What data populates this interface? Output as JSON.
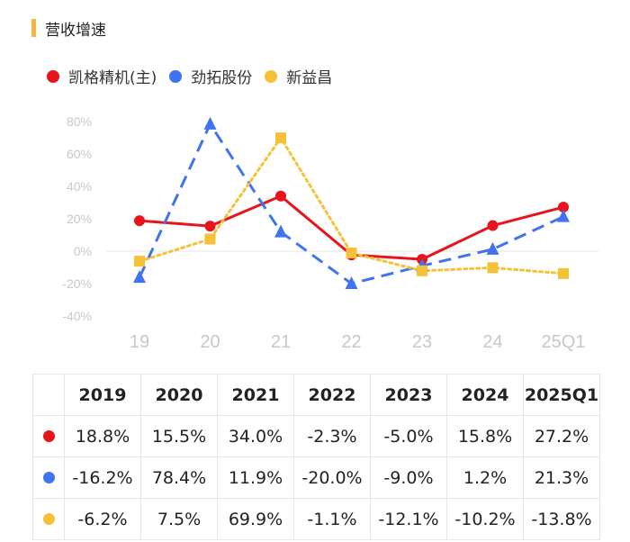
{
  "title": "营收增速",
  "colors": {
    "accent": "#f5b83b"
  },
  "chart_data": {
    "type": "line",
    "categories": [
      "19",
      "20",
      "21",
      "22",
      "23",
      "24",
      "25Q1"
    ],
    "ylim": [
      -40,
      80
    ],
    "yticks": [
      "80%",
      "60%",
      "40%",
      "20%",
      "0%",
      "-20%",
      "-40%"
    ],
    "ytick_values": [
      80,
      60,
      40,
      20,
      0,
      -20,
      -40
    ],
    "series": [
      {
        "name": "凯格精机(主)",
        "color": "#e8141c",
        "marker": "circle",
        "line": "solid",
        "values": [
          18.8,
          15.5,
          34.0,
          -2.3,
          -5.0,
          15.8,
          27.2
        ]
      },
      {
        "name": "劲拓股份",
        "color": "#3f73f2",
        "marker": "triangle",
        "line": "dashed",
        "values": [
          -16.2,
          78.4,
          11.9,
          -20.0,
          -9.0,
          1.2,
          21.3
        ]
      },
      {
        "name": "新益昌",
        "color": "#f7c137",
        "marker": "square",
        "line": "dotted",
        "values": [
          -6.2,
          7.5,
          69.9,
          -1.1,
          -12.1,
          -10.2,
          -13.8
        ]
      }
    ]
  },
  "table": {
    "headers": [
      "",
      "2019",
      "2020",
      "2021",
      "2022",
      "2023",
      "2024",
      "2025Q1"
    ],
    "rows": [
      {
        "color": "#e8141c",
        "cells": [
          "18.8%",
          "15.5%",
          "34.0%",
          "-2.3%",
          "-5.0%",
          "15.8%",
          "27.2%"
        ]
      },
      {
        "color": "#3f73f2",
        "cells": [
          "-16.2%",
          "78.4%",
          "11.9%",
          "-20.0%",
          "-9.0%",
          "1.2%",
          "21.3%"
        ]
      },
      {
        "color": "#f7c137",
        "cells": [
          "-6.2%",
          "7.5%",
          "69.9%",
          "-1.1%",
          "-12.1%",
          "-10.2%",
          "-13.8%"
        ]
      }
    ]
  }
}
